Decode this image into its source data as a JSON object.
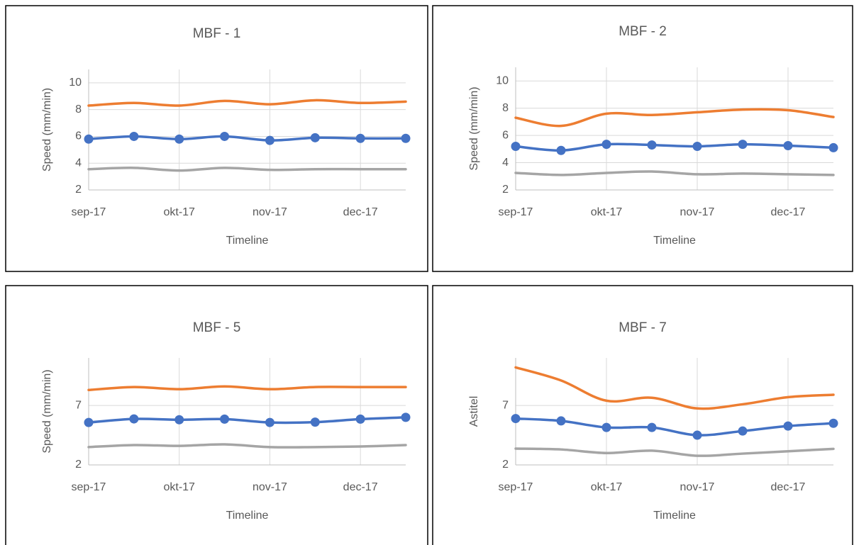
{
  "chart_data": [
    {
      "type": "line",
      "title": "MBF - 1",
      "xlabel": "Timeline",
      "ylabel": "Speed (mm/min)",
      "categories": [
        "sep-17",
        null,
        "okt-17",
        null,
        "nov-17",
        null,
        "dec-17",
        null
      ],
      "series": [
        {
          "color": "#ed7d31",
          "values": [
            8.3,
            8.5,
            8.3,
            8.65,
            8.4,
            8.7,
            8.5,
            8.6
          ]
        },
        {
          "color": "#4472c4",
          "markers": true,
          "values": [
            5.8,
            6.0,
            5.8,
            6.0,
            5.7,
            5.9,
            5.85,
            5.85
          ]
        },
        {
          "color": "#a5a5a5",
          "values": [
            3.55,
            3.65,
            3.45,
            3.65,
            3.5,
            3.55,
            3.55,
            3.55
          ]
        }
      ],
      "ylim": [
        2,
        11
      ],
      "yticks": [
        2,
        4,
        6,
        8,
        10
      ],
      "grid": true
    },
    {
      "type": "line",
      "title": "MBF - 2",
      "xlabel": "Timeline",
      "ylabel": "Speed (mm/min)",
      "categories": [
        "sep-17",
        null,
        "okt-17",
        null,
        "nov-17",
        null,
        "dec-17",
        null
      ],
      "series": [
        {
          "color": "#ed7d31",
          "values": [
            7.3,
            6.7,
            7.6,
            7.5,
            7.7,
            7.9,
            7.85,
            7.35
          ]
        },
        {
          "color": "#4472c4",
          "markers": true,
          "values": [
            5.2,
            4.9,
            5.35,
            5.3,
            5.2,
            5.35,
            5.25,
            5.1
          ]
        },
        {
          "color": "#a5a5a5",
          "values": [
            3.25,
            3.1,
            3.25,
            3.35,
            3.15,
            3.2,
            3.15,
            3.1
          ]
        }
      ],
      "ylim": [
        2,
        11
      ],
      "yticks": [
        2,
        4,
        6,
        8,
        10
      ],
      "grid": true
    },
    {
      "type": "line",
      "title": "MBF - 5",
      "xlabel": "Timeline",
      "ylabel": "Speed (mm/min)",
      "categories": [
        "sep-17",
        null,
        "okt-17",
        null,
        "nov-17",
        null,
        "dec-17",
        null
      ],
      "series": [
        {
          "color": "#ed7d31",
          "values": [
            8.3,
            8.55,
            8.37,
            8.6,
            8.37,
            8.55,
            8.55,
            8.55
          ]
        },
        {
          "color": "#4472c4",
          "markers": true,
          "values": [
            5.57,
            5.87,
            5.8,
            5.85,
            5.57,
            5.6,
            5.85,
            6.0
          ]
        },
        {
          "color": "#a5a5a5",
          "values": [
            3.5,
            3.67,
            3.6,
            3.73,
            3.5,
            3.5,
            3.55,
            3.67
          ]
        }
      ],
      "ylim": [
        2,
        11
      ],
      "yticks": [
        2,
        7
      ],
      "grid": true
    },
    {
      "type": "line",
      "title": "MBF - 7",
      "xlabel": "Timeline",
      "ylabel": "Astitel",
      "categories": [
        "sep-17",
        null,
        "okt-17",
        null,
        "nov-17",
        null,
        "dec-17",
        null
      ],
      "series": [
        {
          "color": "#ed7d31",
          "values": [
            10.2,
            9.1,
            7.4,
            7.65,
            6.75,
            7.1,
            7.7,
            7.9
          ]
        },
        {
          "color": "#4472c4",
          "markers": true,
          "values": [
            5.9,
            5.7,
            5.15,
            5.15,
            4.5,
            4.85,
            5.27,
            5.5
          ]
        },
        {
          "color": "#a5a5a5",
          "values": [
            3.37,
            3.3,
            3.0,
            3.2,
            2.77,
            2.95,
            3.15,
            3.35
          ]
        }
      ],
      "ylim": [
        2,
        11
      ],
      "yticks": [
        2,
        7
      ],
      "grid": true
    }
  ]
}
